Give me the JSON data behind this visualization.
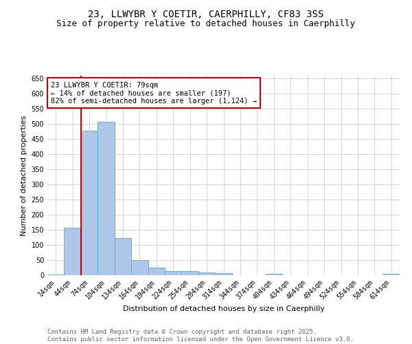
{
  "title_line1": "23, LLWYBR Y COETIR, CAERPHILLY, CF83 3SS",
  "title_line2": "Size of property relative to detached houses in Caerphilly",
  "xlabel": "Distribution of detached houses by size in Caerphilly",
  "ylabel": "Number of detached properties",
  "categories": [
    "14sqm",
    "44sqm",
    "74sqm",
    "104sqm",
    "134sqm",
    "164sqm",
    "194sqm",
    "224sqm",
    "254sqm",
    "284sqm",
    "314sqm",
    "344sqm",
    "374sqm",
    "404sqm",
    "434sqm",
    "464sqm",
    "494sqm",
    "524sqm",
    "554sqm",
    "584sqm",
    "614sqm"
  ],
  "values": [
    3,
    158,
    478,
    507,
    122,
    51,
    25,
    14,
    14,
    10,
    7,
    0,
    0,
    5,
    0,
    0,
    0,
    0,
    0,
    0,
    4
  ],
  "bar_color": "#aec6e8",
  "bar_edge_color": "#6aaed6",
  "vline_x_index": 2,
  "vline_color": "#cc0000",
  "annotation_text": "23 LLWYBR Y COETIR: 79sqm\n← 14% of detached houses are smaller (197)\n82% of semi-detached houses are larger (1,124) →",
  "annotation_box_color": "white",
  "annotation_box_edge": "#cc0000",
  "ylim": [
    0,
    660
  ],
  "yticks": [
    0,
    50,
    100,
    150,
    200,
    250,
    300,
    350,
    400,
    450,
    500,
    550,
    600,
    650
  ],
  "background_color": "white",
  "grid_color": "#cccccc",
  "footer_text": "Contains HM Land Registry data © Crown copyright and database right 2025.\nContains public sector information licensed under the Open Government Licence v3.0.",
  "title_fontsize": 10,
  "subtitle_fontsize": 9,
  "axis_label_fontsize": 8,
  "tick_fontsize": 7,
  "annotation_fontsize": 7.5,
  "footer_fontsize": 6.5
}
